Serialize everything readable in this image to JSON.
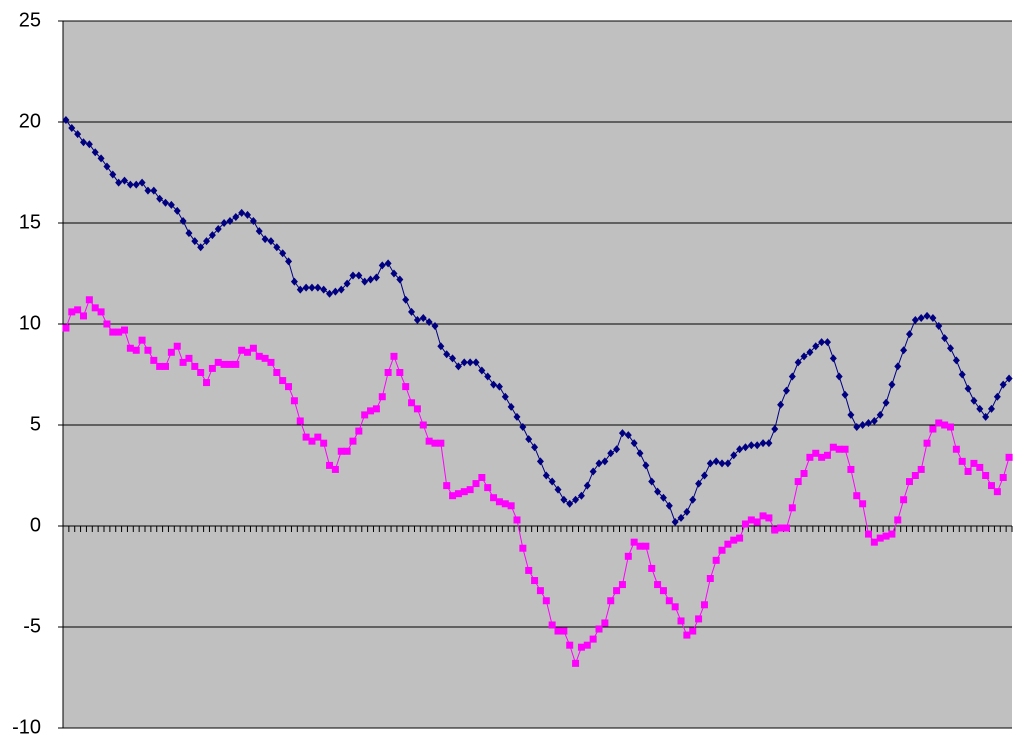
{
  "chart_data": {
    "type": "line",
    "ylim": [
      -10,
      25
    ],
    "yticks": [
      -10,
      -5,
      0,
      5,
      10,
      15,
      20,
      25
    ],
    "grid": true,
    "series": [
      {
        "color": "#000080",
        "marker": "diamond",
        "values": [
          20.1,
          19.7,
          19.4,
          19,
          18.9,
          18.5,
          18.2,
          17.8,
          17.4,
          17,
          17.1,
          16.9,
          16.9,
          17,
          16.6,
          16.6,
          16.2,
          16,
          15.9,
          15.6,
          15.1,
          14.5,
          14.1,
          13.8,
          14.1,
          14.4,
          14.7,
          15,
          15.1,
          15.3,
          15.5,
          15.4,
          15.1,
          14.6,
          14.2,
          14.1,
          13.8,
          13.5,
          13.1,
          12.1,
          11.7,
          11.8,
          11.8,
          11.8,
          11.7,
          11.5,
          11.6,
          11.7,
          12,
          12.4,
          12.4,
          12.1,
          12.2,
          12.3,
          12.9,
          13,
          12.5,
          12.2,
          11.2,
          10.6,
          10.2,
          10.3,
          10.1,
          9.9,
          8.9,
          8.5,
          8.3,
          7.9,
          8.1,
          8.1,
          8.1,
          7.7,
          7.4,
          7,
          6.9,
          6.4,
          5.9,
          5.4,
          4.9,
          4.3,
          3.9,
          3.2,
          2.5,
          2.2,
          1.8,
          1.3,
          1.1,
          1.3,
          1.5,
          2,
          2.7,
          3.1,
          3.2,
          3.6,
          3.8,
          4.6,
          4.5,
          4.1,
          3.6,
          3,
          2.2,
          1.7,
          1.4,
          1,
          0.2,
          0.4,
          0.7,
          1.3,
          2.1,
          2.5,
          3.1,
          3.2,
          3.1,
          3.1,
          3.5,
          3.8,
          3.9,
          4,
          4,
          4.1,
          4.1,
          4.8,
          6,
          6.7,
          7.4,
          8.1,
          8.4,
          8.6,
          8.9,
          9.1,
          9.1,
          8.3,
          7.4,
          6.5,
          5.5,
          4.9,
          5,
          5.1,
          5.2,
          5.5,
          6.1,
          7,
          7.9,
          8.7,
          9.5,
          10.2,
          10.3,
          10.4,
          10.3,
          9.9,
          9.3,
          8.8,
          8.2,
          7.5,
          6.8,
          6.2,
          5.8,
          5.4,
          5.8,
          6.4,
          7,
          7.3
        ]
      },
      {
        "color": "#ff00ff",
        "marker": "square",
        "values": [
          9.8,
          10.6,
          10.7,
          10.4,
          11.2,
          10.8,
          10.6,
          10,
          9.6,
          9.6,
          9.7,
          8.8,
          8.7,
          9.2,
          8.7,
          8.2,
          7.9,
          7.9,
          8.6,
          8.9,
          8.1,
          8.3,
          7.9,
          7.6,
          7.1,
          7.8,
          8.1,
          8,
          8,
          8,
          8.7,
          8.6,
          8.8,
          8.4,
          8.3,
          8.1,
          7.6,
          7.2,
          6.9,
          6.2,
          5.2,
          4.4,
          4.2,
          4.4,
          4.1,
          3,
          2.8,
          3.7,
          3.7,
          4.2,
          4.7,
          5.5,
          5.7,
          5.8,
          6.4,
          7.6,
          8.4,
          7.6,
          6.9,
          6.1,
          5.8,
          5,
          4.2,
          4.1,
          4.1,
          2,
          1.5,
          1.6,
          1.7,
          1.8,
          2.1,
          2.4,
          1.9,
          1.4,
          1.2,
          1.1,
          1,
          0.3,
          -1.1,
          -2.2,
          -2.7,
          -3.2,
          -3.7,
          -4.9,
          -5.2,
          -5.2,
          -5.9,
          -6.8,
          -6,
          -5.9,
          -5.6,
          -5.1,
          -4.8,
          -3.7,
          -3.2,
          -2.9,
          -1.5,
          -0.8,
          -1,
          -1,
          -2.1,
          -2.9,
          -3.2,
          -3.7,
          -4,
          -4.7,
          -5.4,
          -5.2,
          -4.6,
          -3.9,
          -2.6,
          -1.7,
          -1.2,
          -0.9,
          -0.7,
          -0.6,
          0.1,
          0.3,
          0.2,
          0.5,
          0.4,
          -0.2,
          -0.1,
          -0.1,
          0.9,
          2.2,
          2.6,
          3.4,
          3.6,
          3.4,
          3.5,
          3.9,
          3.8,
          3.8,
          2.8,
          1.5,
          1.1,
          -0.4,
          -0.8,
          -0.6,
          -0.5,
          -0.4,
          0.3,
          1.3,
          2.2,
          2.5,
          2.8,
          4.1,
          4.8,
          5.1,
          5,
          4.9,
          3.8,
          3.2,
          2.7,
          3.1,
          2.9,
          2.5,
          2,
          1.7,
          2.4,
          3.4
        ]
      }
    ]
  }
}
